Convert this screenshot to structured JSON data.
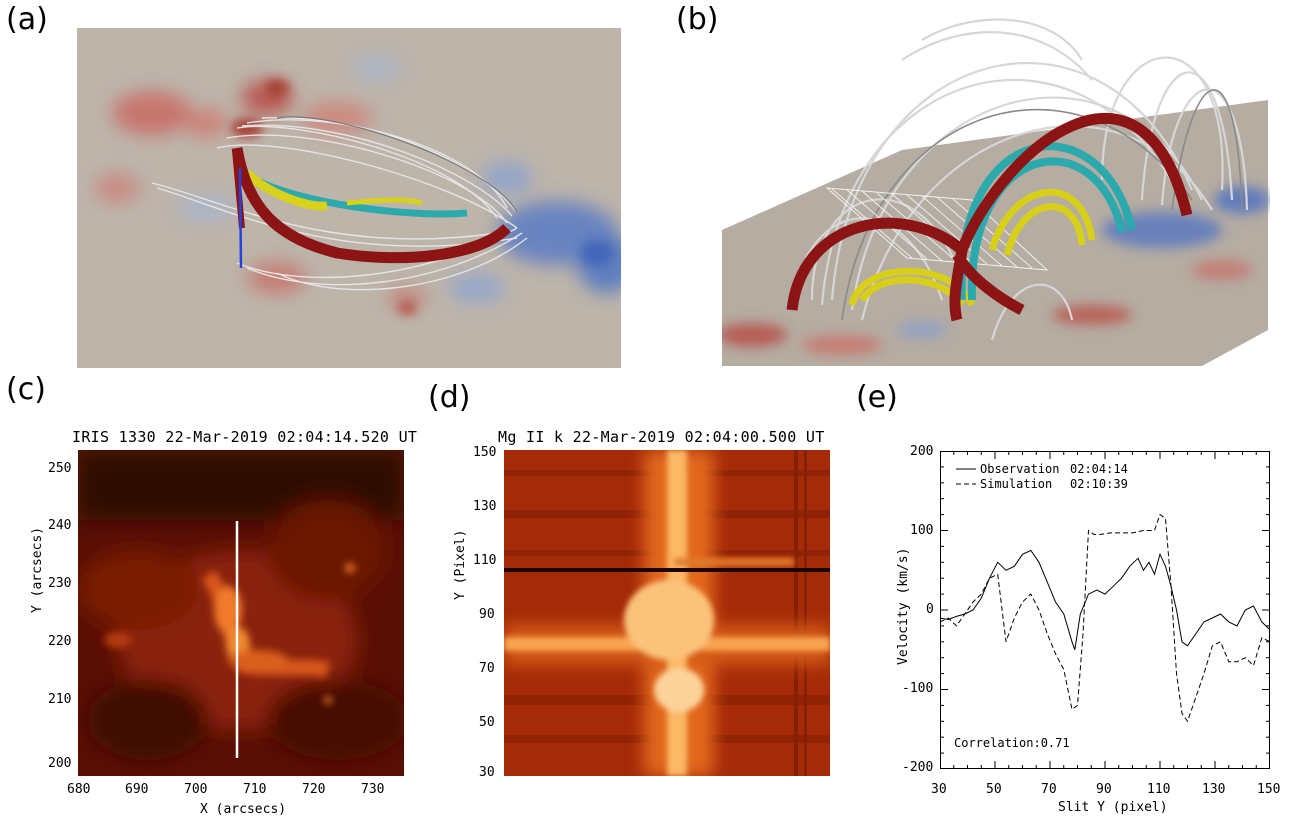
{
  "labels": {
    "a": "(a)",
    "b": "(b)",
    "c": "(c)",
    "d": "(d)",
    "e": "(e)"
  },
  "panel_c": {
    "title": "IRIS 1330 22-Mar-2019 02:04:14.520 UT",
    "xlabel": "X (arcsecs)",
    "ylabel": "Y (arcsecs)",
    "xticks": [
      "680",
      "690",
      "700",
      "710",
      "720",
      "730"
    ],
    "yticks": [
      "250",
      "240",
      "230",
      "220",
      "210",
      "200"
    ]
  },
  "panel_d": {
    "title": "Mg II k 22-Mar-2019 02:04:00.500 UT",
    "ylabel": "Y (Pixel)",
    "yticks": [
      "150",
      "130",
      "110",
      "90",
      "70",
      "50",
      "30"
    ]
  },
  "chart_data": {
    "type": "line",
    "xlabel": "Slit Y (pixel)",
    "ylabel": "Velocity (km/s)",
    "xlim": [
      30,
      150
    ],
    "ylim": [
      -200,
      200
    ],
    "xticks": [
      "30",
      "50",
      "70",
      "90",
      "110",
      "130",
      "150"
    ],
    "yticks": [
      "200",
      "100",
      "0",
      "-100",
      "-200"
    ],
    "legend": [
      {
        "name": "Observation",
        "time": "02:04:14",
        "style": "solid"
      },
      {
        "name": "Simulation",
        "time": "02:10:39",
        "style": "dashed"
      }
    ],
    "annotation": "Correlation:0.71",
    "series": [
      {
        "name": "Observation",
        "x": [
          30,
          33,
          36,
          39,
          42,
          45,
          48,
          51,
          54,
          57,
          60,
          63,
          66,
          69,
          72,
          75,
          78,
          79,
          81,
          84,
          87,
          90,
          93,
          96,
          99,
          102,
          104,
          106,
          108,
          110,
          112,
          114,
          116,
          118,
          120,
          123,
          126,
          129,
          132,
          135,
          138,
          141,
          144,
          147,
          150
        ],
        "y": [
          -10,
          -12,
          -8,
          -5,
          0,
          15,
          40,
          60,
          50,
          55,
          70,
          75,
          60,
          35,
          10,
          -5,
          -40,
          -50,
          -5,
          20,
          25,
          20,
          30,
          40,
          55,
          65,
          50,
          60,
          45,
          70,
          55,
          30,
          0,
          -40,
          -45,
          -30,
          -15,
          -10,
          -5,
          -15,
          -20,
          0,
          5,
          -15,
          -25
        ]
      },
      {
        "name": "Simulation",
        "x": [
          30,
          33,
          36,
          39,
          42,
          45,
          48,
          51,
          54,
          57,
          60,
          63,
          66,
          69,
          72,
          75,
          78,
          80,
          82,
          84,
          86,
          88,
          92,
          96,
          100,
          104,
          108,
          110,
          112,
          114,
          116,
          118,
          120,
          123,
          126,
          129,
          132,
          135,
          138,
          141,
          144,
          147,
          150
        ],
        "y": [
          -15,
          -10,
          -20,
          -5,
          10,
          20,
          40,
          45,
          -40,
          -10,
          10,
          20,
          0,
          -30,
          -55,
          -75,
          -125,
          -120,
          -30,
          100,
          95,
          95,
          97,
          97,
          97,
          100,
          100,
          120,
          115,
          30,
          -80,
          -130,
          -140,
          -110,
          -80,
          -45,
          -40,
          -65,
          -65,
          -60,
          -70,
          -35,
          -40
        ]
      }
    ]
  }
}
